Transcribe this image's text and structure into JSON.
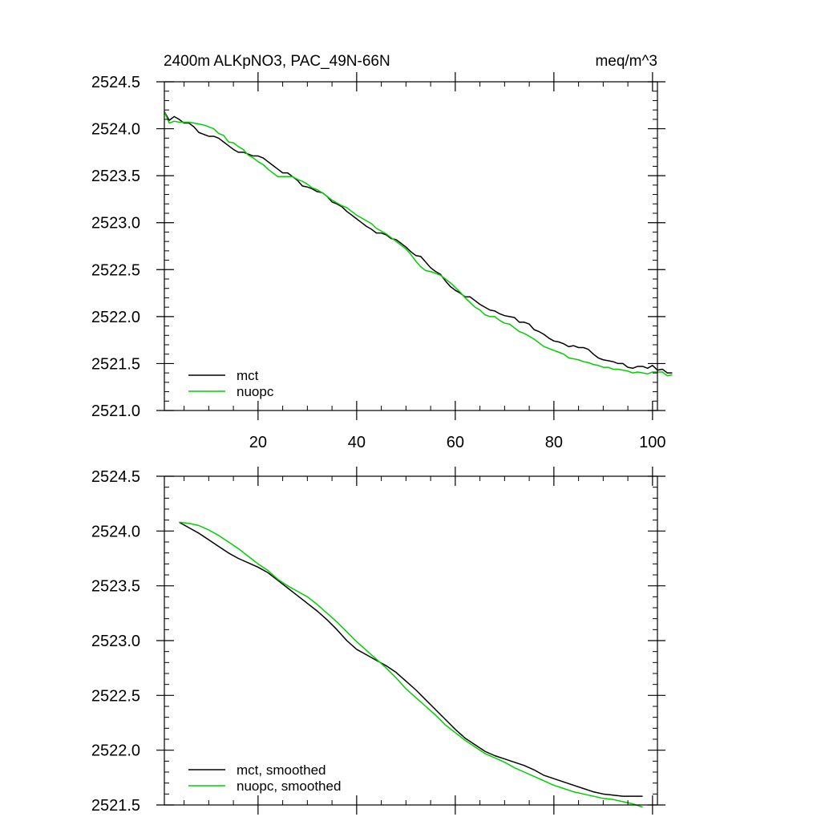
{
  "figure": {
    "title_left": "2400m ALKpNO3, PAC_49N-66N",
    "title_right": "meq/m^3"
  },
  "chart_data": [
    {
      "type": "line",
      "panel": "top",
      "title": "2400m ALKpNO3, PAC_49N-66N",
      "units": "meq/m^3",
      "xlim": [
        1,
        101
      ],
      "ylim": [
        2521.0,
        2524.5
      ],
      "x_major_ticks": [
        20,
        40,
        60,
        80,
        100
      ],
      "x_tick_labels": [
        "20",
        "40",
        "60",
        "80",
        "100"
      ],
      "x_tick_labels_shown": true,
      "y_major_ticks": [
        2521.0,
        2521.5,
        2522.0,
        2522.5,
        2523.0,
        2523.5,
        2524.0,
        2524.5
      ],
      "y_tick_labels": [
        "2521.0",
        "2521.5",
        "2522.0",
        "2522.5",
        "2523.0",
        "2523.5",
        "2524.0",
        "2524.5"
      ],
      "legend_position": "bottom-left",
      "series": [
        {
          "name": "mct",
          "color": "#000000",
          "x_start": 1,
          "x_step": 1,
          "values": [
            2524.18,
            2524.09,
            2524.13,
            2524.1,
            2524.06,
            2524.06,
            2524.02,
            2523.96,
            2523.94,
            2523.92,
            2523.92,
            2523.9,
            2523.86,
            2523.82,
            2523.78,
            2523.75,
            2523.75,
            2523.73,
            2523.71,
            2523.71,
            2523.69,
            2523.65,
            2523.61,
            2523.57,
            2523.53,
            2523.53,
            2523.49,
            2523.45,
            2523.39,
            2523.38,
            2523.36,
            2523.33,
            2523.32,
            2523.28,
            2523.22,
            2523.2,
            2523.17,
            2523.12,
            2523.08,
            2523.04,
            2523.0,
            2522.96,
            2522.93,
            2522.89,
            2522.89,
            2522.87,
            2522.83,
            2522.82,
            2522.78,
            2522.74,
            2522.69,
            2522.65,
            2522.64,
            2522.58,
            2522.52,
            2522.48,
            2522.45,
            2522.38,
            2522.32,
            2522.28,
            2522.25,
            2522.21,
            2522.21,
            2522.17,
            2522.13,
            2522.1,
            2522.07,
            2522.06,
            2522.03,
            2522.01,
            2522.0,
            2521.99,
            2521.94,
            2521.94,
            2521.92,
            2521.86,
            2521.84,
            2521.81,
            2521.77,
            2521.74,
            2521.73,
            2521.71,
            2521.68,
            2521.69,
            2521.67,
            2521.67,
            2521.65,
            2521.6,
            2521.56,
            2521.54,
            2521.53,
            2521.52,
            2521.5,
            2521.5,
            2521.46,
            2521.45,
            2521.47,
            2521.47,
            2521.45,
            2521.48,
            2521.43,
            2521.44,
            2521.4,
            2521.4
          ]
        },
        {
          "name": "nuopc",
          "color": "#00d000",
          "x_start": 1,
          "x_step": 1,
          "values": [
            2524.18,
            2524.06,
            2524.08,
            2524.07,
            2524.07,
            2524.07,
            2524.06,
            2524.05,
            2524.04,
            2524.02,
            2524.0,
            2523.95,
            2523.93,
            2523.86,
            2523.85,
            2523.81,
            2523.78,
            2523.72,
            2523.69,
            2523.65,
            2523.62,
            2523.57,
            2523.53,
            2523.49,
            2523.49,
            2523.49,
            2523.49,
            2523.46,
            2523.44,
            2523.41,
            2523.37,
            2523.35,
            2523.32,
            2523.28,
            2523.24,
            2523.21,
            2523.18,
            2523.16,
            2523.12,
            2523.08,
            2523.05,
            2523.02,
            2522.99,
            2522.94,
            2522.91,
            2522.88,
            2522.84,
            2522.8,
            2522.76,
            2522.72,
            2522.66,
            2522.59,
            2522.53,
            2522.49,
            2522.48,
            2522.46,
            2522.44,
            2522.4,
            2522.36,
            2522.31,
            2522.26,
            2522.2,
            2522.15,
            2522.1,
            2522.07,
            2522.02,
            2522.0,
            2522.0,
            2521.96,
            2521.93,
            2521.92,
            2521.88,
            2521.84,
            2521.82,
            2521.79,
            2521.76,
            2521.72,
            2521.68,
            2521.66,
            2521.64,
            2521.62,
            2521.6,
            2521.56,
            2521.55,
            2521.54,
            2521.52,
            2521.51,
            2521.49,
            2521.48,
            2521.46,
            2521.46,
            2521.44,
            2521.44,
            2521.43,
            2521.42,
            2521.4,
            2521.41,
            2521.4,
            2521.39,
            2521.41,
            2521.41,
            2521.41,
            2521.37,
            2521.38
          ]
        }
      ]
    },
    {
      "type": "line",
      "panel": "bottom",
      "xlim": [
        1,
        101
      ],
      "ylim": [
        2521.5,
        2524.5
      ],
      "x_major_ticks": [
        20,
        40,
        60,
        80,
        100
      ],
      "x_tick_labels": [],
      "x_tick_labels_shown": false,
      "y_major_ticks": [
        2521.5,
        2522.0,
        2522.5,
        2523.0,
        2523.5,
        2524.0,
        2524.5
      ],
      "y_tick_labels": [
        "2521.5",
        "2522.0",
        "2522.5",
        "2523.0",
        "2523.5",
        "2524.0",
        "2524.5"
      ],
      "legend_position": "bottom-left",
      "series": [
        {
          "name": "mct, smoothed",
          "color": "#000000",
          "x": [
            4,
            6,
            8,
            10,
            12,
            14,
            16,
            18,
            20,
            22,
            24,
            26,
            28,
            30,
            32,
            34,
            36,
            38,
            40,
            42,
            44,
            46,
            48,
            50,
            52,
            54,
            56,
            58,
            60,
            62,
            64,
            66,
            68,
            70,
            72,
            74,
            76,
            78,
            80,
            82,
            84,
            86,
            88,
            90,
            92,
            94,
            96,
            98
          ],
          "values": [
            2524.08,
            2524.03,
            2523.98,
            2523.92,
            2523.86,
            2523.8,
            2523.75,
            2523.71,
            2523.67,
            2523.62,
            2523.55,
            2523.48,
            2523.41,
            2523.34,
            2523.27,
            2523.19,
            2523.1,
            2523.0,
            2522.92,
            2522.87,
            2522.82,
            2522.77,
            2522.71,
            2522.63,
            2522.55,
            2522.46,
            2522.37,
            2522.28,
            2522.19,
            2522.11,
            2522.05,
            2521.99,
            2521.95,
            2521.92,
            2521.89,
            2521.86,
            2521.82,
            2521.77,
            2521.74,
            2521.71,
            2521.68,
            2521.65,
            2521.62,
            2521.6,
            2521.59,
            2521.58,
            2521.58,
            2521.58
          ]
        },
        {
          "name": "nuopc, smoothed",
          "color": "#00d000",
          "x": [
            4,
            6,
            8,
            10,
            12,
            14,
            16,
            18,
            20,
            22,
            24,
            26,
            28,
            30,
            32,
            34,
            36,
            38,
            40,
            42,
            44,
            46,
            48,
            50,
            52,
            54,
            56,
            58,
            60,
            62,
            64,
            66,
            68,
            70,
            72,
            74,
            76,
            78,
            80,
            82,
            84,
            86,
            88,
            90,
            92,
            94,
            96,
            98
          ],
          "values": [
            2524.08,
            2524.07,
            2524.05,
            2524.01,
            2523.96,
            2523.9,
            2523.84,
            2523.77,
            2523.7,
            2523.64,
            2523.56,
            2523.5,
            2523.45,
            2523.4,
            2523.33,
            2523.25,
            2523.17,
            2523.08,
            2522.99,
            2522.91,
            2522.83,
            2522.75,
            2522.66,
            2522.56,
            2522.48,
            2522.4,
            2522.32,
            2522.23,
            2522.16,
            2522.09,
            2522.03,
            2521.97,
            2521.93,
            2521.89,
            2521.84,
            2521.8,
            2521.76,
            2521.72,
            2521.68,
            2521.65,
            2521.62,
            2521.6,
            2521.58,
            2521.56,
            2521.55,
            2521.53,
            2521.51,
            2521.48
          ]
        }
      ]
    }
  ]
}
